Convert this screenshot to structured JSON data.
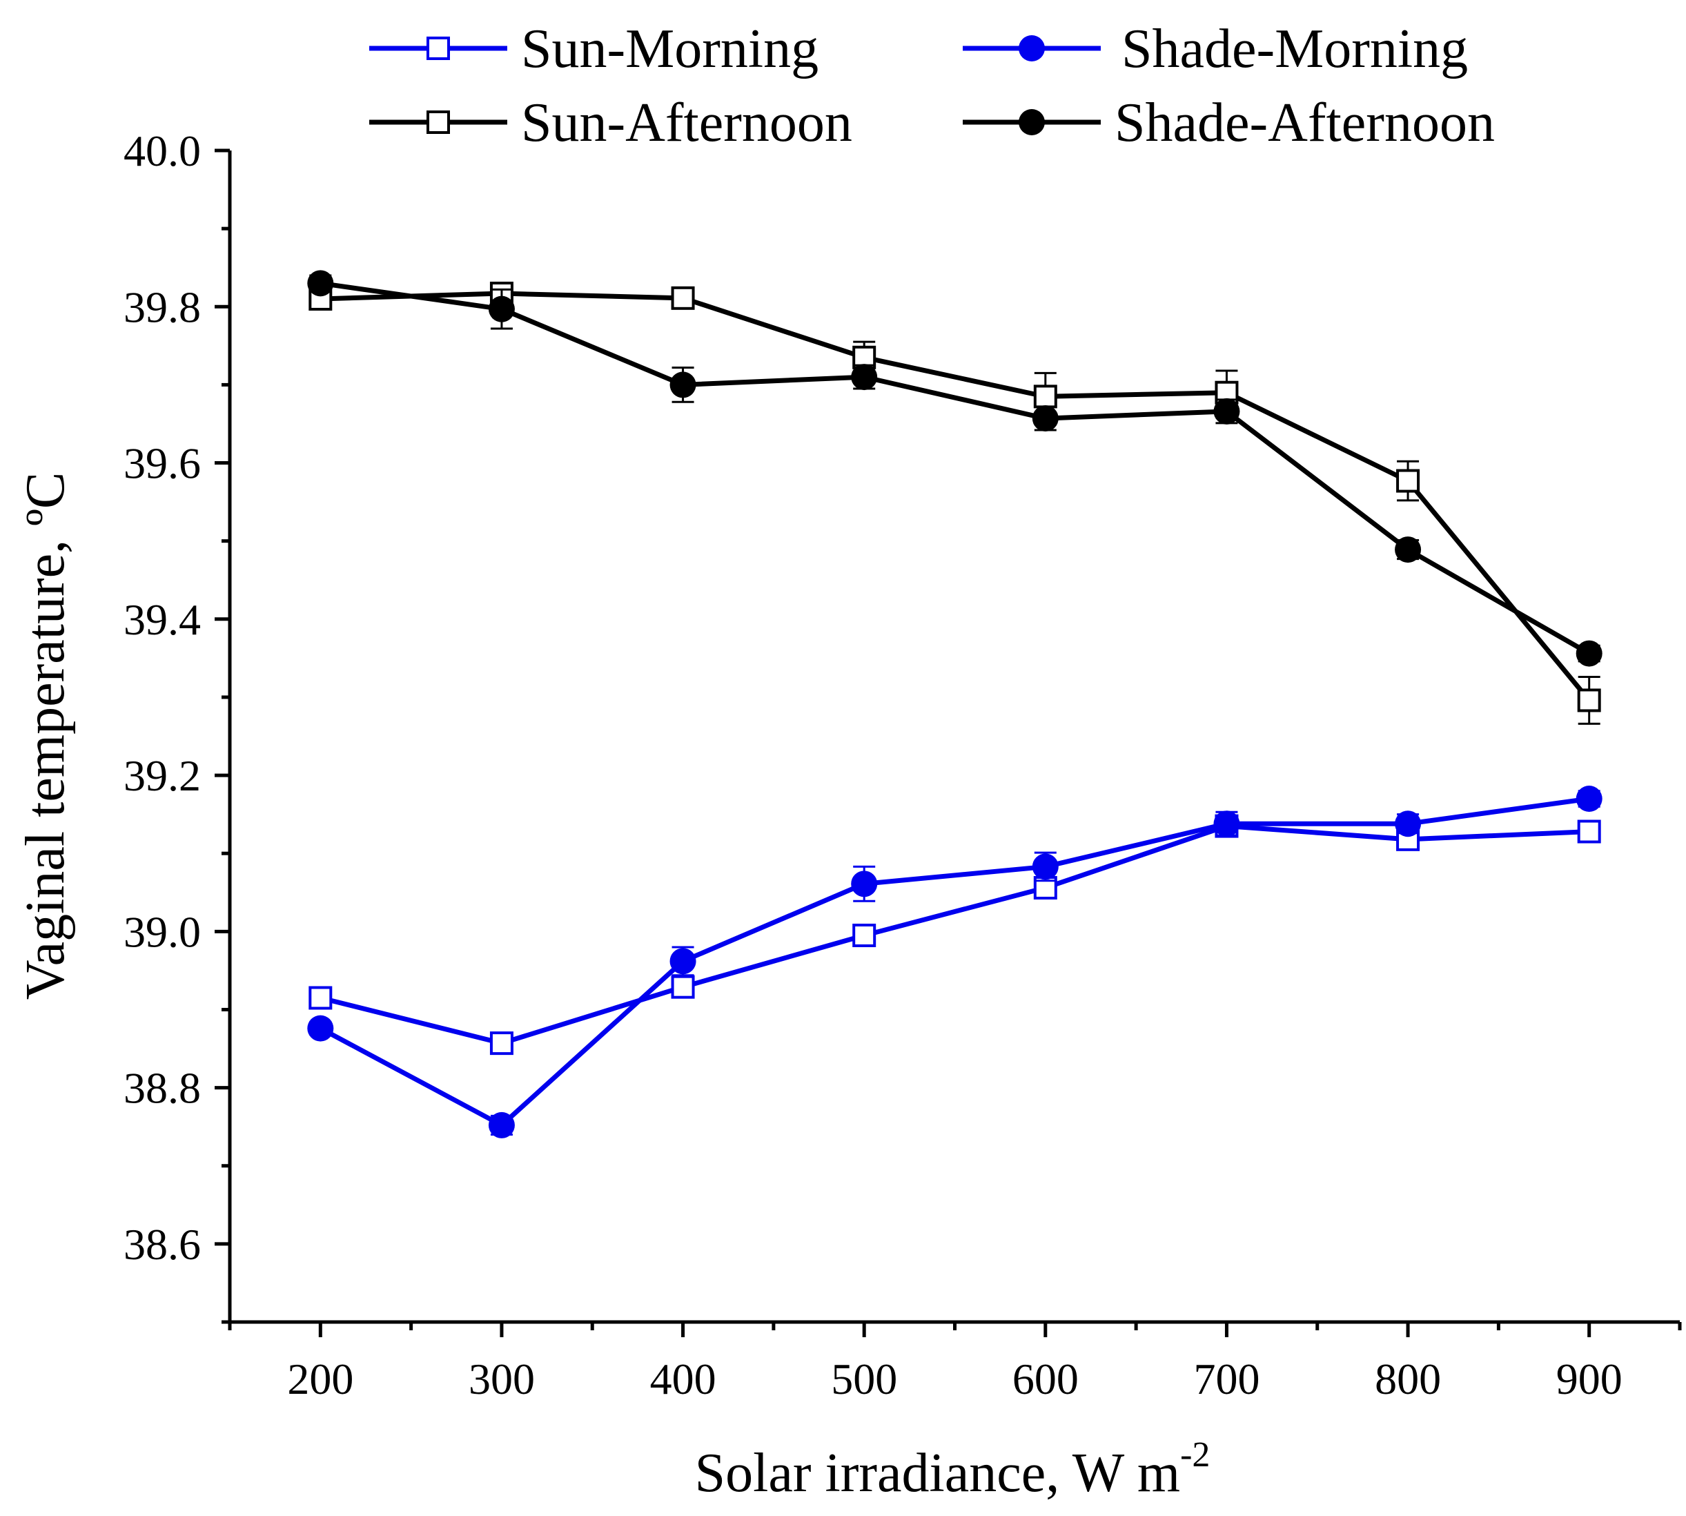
{
  "chart_data": {
    "type": "line",
    "title": "",
    "xlabel": "Solar irradiance, W m",
    "xlabel_sup": "-2",
    "ylabel": "Vaginal temperature, ºC",
    "xlim": [
      150,
      950
    ],
    "ylim": [
      38.5,
      40.0
    ],
    "x_ticks": [
      "200",
      "300",
      "400",
      "500",
      "600",
      "700",
      "800",
      "900"
    ],
    "y_ticks": [
      "38.6",
      "38.8",
      "39.0",
      "39.2",
      "39.4",
      "39.6",
      "39.8",
      "40.0"
    ],
    "x": [
      200,
      300,
      400,
      500,
      600,
      700,
      800,
      900
    ],
    "legend_position": "top",
    "series": [
      {
        "name": "Sun-Morning",
        "color": "#0000ee",
        "marker": "open-square",
        "values": [
          38.915,
          38.857,
          38.929,
          38.995,
          39.056,
          39.135,
          39.118,
          39.128
        ],
        "errors": [
          0.008,
          0.008,
          0.008,
          0.01,
          0.01,
          0.01,
          0.008,
          0.01
        ]
      },
      {
        "name": "Shade-Morning",
        "color": "#0000ee",
        "marker": "filled-circle",
        "values": [
          38.876,
          38.752,
          38.962,
          39.061,
          39.083,
          39.138,
          39.138,
          39.17
        ],
        "errors": [
          0.008,
          0.012,
          0.018,
          0.022,
          0.018,
          0.015,
          0.012,
          0.01
        ]
      },
      {
        "name": "Sun-Afternoon",
        "color": "#000000",
        "marker": "open-square",
        "values": [
          39.81,
          39.817,
          39.811,
          39.735,
          39.685,
          39.69,
          39.577,
          39.296
        ],
        "errors": [
          0.01,
          0.01,
          0.01,
          0.02,
          0.03,
          0.028,
          0.025,
          0.03
        ]
      },
      {
        "name": "Shade-Afternoon",
        "color": "#000000",
        "marker": "filled-circle",
        "values": [
          39.83,
          39.797,
          39.7,
          39.71,
          39.657,
          39.666,
          39.489,
          39.356
        ],
        "errors": [
          0.01,
          0.025,
          0.022,
          0.015,
          0.015,
          0.015,
          0.012,
          0.01
        ]
      }
    ]
  }
}
